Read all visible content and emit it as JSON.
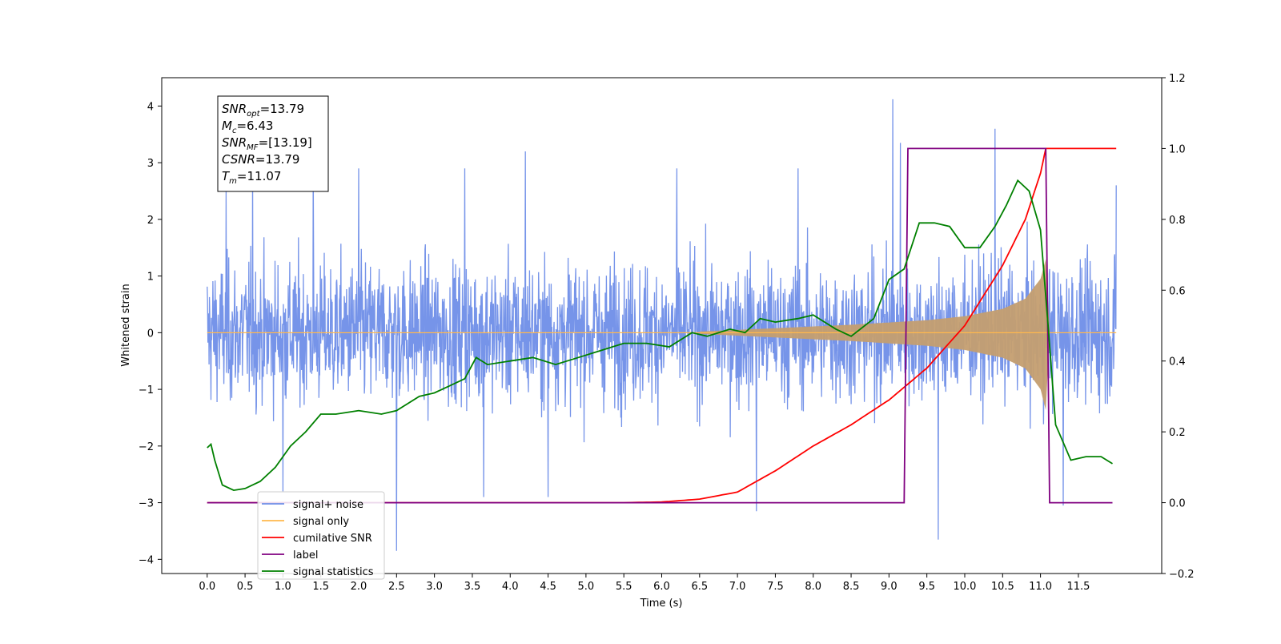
{
  "chart_data": {
    "type": "line",
    "title": "",
    "xlabel": "Time (s)",
    "ylabel": "Whitened strain",
    "y2label": "",
    "xlim": [
      -0.6,
      12.6
    ],
    "ylim": [
      -4.25,
      4.5
    ],
    "y2lim": [
      -0.2,
      1.2
    ],
    "x_ticks": [
      0.0,
      0.5,
      1.0,
      1.5,
      2.0,
      2.5,
      3.0,
      3.5,
      4.0,
      4.5,
      5.0,
      5.5,
      6.0,
      6.5,
      7.0,
      7.5,
      8.0,
      8.5,
      9.0,
      9.5,
      10.0,
      10.5,
      11.0,
      11.5
    ],
    "y_ticks": [
      4,
      3,
      2,
      1,
      0,
      -1,
      -2,
      -3,
      -4
    ],
    "y2_ticks": [
      1.2,
      1.0,
      0.8,
      0.6,
      0.4,
      0.2,
      0.0,
      -0.2
    ],
    "grid": false,
    "legend_position": "lower-left",
    "annotation": [
      {
        "label": "SNR",
        "sub": "opt",
        "value": "=13.79"
      },
      {
        "label": "M",
        "sub": "c",
        "value": "=6.43"
      },
      {
        "label": "SNR",
        "sub": "MF",
        "value": "=[13.19]"
      },
      {
        "label": "CSNR",
        "sub": "",
        "value": "=13.79"
      },
      {
        "label": "T",
        "sub": "m",
        "value": "=11.07"
      }
    ],
    "series": [
      {
        "name": "signal+ noise",
        "color": "#6f8ee8",
        "axis": "left",
        "description_values": "noise band roughly ±2.5 with spikes up to 4.1 (t=9.05) and down to -3.8 (t=2.5)",
        "spikes": [
          [
            0.25,
            2.5
          ],
          [
            0.6,
            2.9
          ],
          [
            1.0,
            -2.8
          ],
          [
            1.4,
            3.0
          ],
          [
            2.0,
            2.9
          ],
          [
            2.5,
            3.2
          ],
          [
            2.5,
            -3.85
          ],
          [
            3.4,
            2.9
          ],
          [
            3.65,
            -2.9
          ],
          [
            4.2,
            3.2
          ],
          [
            4.5,
            -2.9
          ],
          [
            6.2,
            2.9
          ],
          [
            7.25,
            -3.15
          ],
          [
            7.8,
            2.9
          ],
          [
            9.05,
            4.12
          ],
          [
            9.15,
            3.35
          ],
          [
            9.65,
            -3.65
          ],
          [
            10.4,
            3.6
          ],
          [
            11.3,
            -3.05
          ],
          [
            12.0,
            2.6
          ]
        ]
      },
      {
        "name": "signal only",
        "color": "#ffb84d",
        "axis": "left",
        "envelope": [
          [
            6.5,
            0.02
          ],
          [
            7.5,
            0.08
          ],
          [
            8.5,
            0.14
          ],
          [
            9.5,
            0.22
          ],
          [
            10.0,
            0.29
          ],
          [
            10.5,
            0.42
          ],
          [
            10.8,
            0.6
          ],
          [
            11.0,
            0.95
          ],
          [
            11.07,
            1.3
          ],
          [
            11.12,
            0.05
          ]
        ]
      },
      {
        "name": "cumilative SNR",
        "color": "#ff0000",
        "axis": "right",
        "x": [
          0.0,
          5.5,
          6.0,
          6.5,
          7.0,
          7.5,
          8.0,
          8.5,
          9.0,
          9.5,
          10.0,
          10.5,
          10.8,
          11.0,
          11.07,
          12.0
        ],
        "values": [
          0.0,
          0.0,
          0.002,
          0.01,
          0.03,
          0.09,
          0.16,
          0.22,
          0.29,
          0.38,
          0.5,
          0.67,
          0.8,
          0.93,
          1.0,
          1.0
        ]
      },
      {
        "name": "label",
        "color": "#800080",
        "axis": "right",
        "x": [
          0.0,
          9.2,
          9.25,
          11.07,
          11.12,
          11.95
        ],
        "values": [
          0.0,
          0.0,
          1.0,
          1.0,
          0.0,
          0.0
        ]
      },
      {
        "name": "signal statistics",
        "color": "#008000",
        "axis": "right",
        "x": [
          0.0,
          0.05,
          0.1,
          0.2,
          0.35,
          0.5,
          0.7,
          0.9,
          1.1,
          1.3,
          1.5,
          1.7,
          2.0,
          2.3,
          2.5,
          2.8,
          3.0,
          3.2,
          3.4,
          3.55,
          3.7,
          4.0,
          4.3,
          4.6,
          4.9,
          5.2,
          5.5,
          5.8,
          6.1,
          6.4,
          6.6,
          6.9,
          7.1,
          7.3,
          7.5,
          7.8,
          8.0,
          8.3,
          8.5,
          8.8,
          9.0,
          9.2,
          9.4,
          9.6,
          9.8,
          10.0,
          10.2,
          10.4,
          10.55,
          10.7,
          10.85,
          11.0,
          11.1,
          11.2,
          11.4,
          11.6,
          11.8,
          11.95
        ],
        "values": [
          0.155,
          0.165,
          0.12,
          0.05,
          0.035,
          0.04,
          0.06,
          0.1,
          0.16,
          0.2,
          0.25,
          0.25,
          0.26,
          0.25,
          0.26,
          0.3,
          0.31,
          0.33,
          0.35,
          0.41,
          0.39,
          0.4,
          0.41,
          0.39,
          0.41,
          0.43,
          0.45,
          0.45,
          0.44,
          0.48,
          0.47,
          0.49,
          0.48,
          0.52,
          0.51,
          0.52,
          0.53,
          0.49,
          0.47,
          0.52,
          0.63,
          0.66,
          0.79,
          0.79,
          0.78,
          0.72,
          0.72,
          0.78,
          0.84,
          0.91,
          0.88,
          0.77,
          0.5,
          0.22,
          0.12,
          0.13,
          0.13,
          0.11
        ]
      }
    ]
  }
}
